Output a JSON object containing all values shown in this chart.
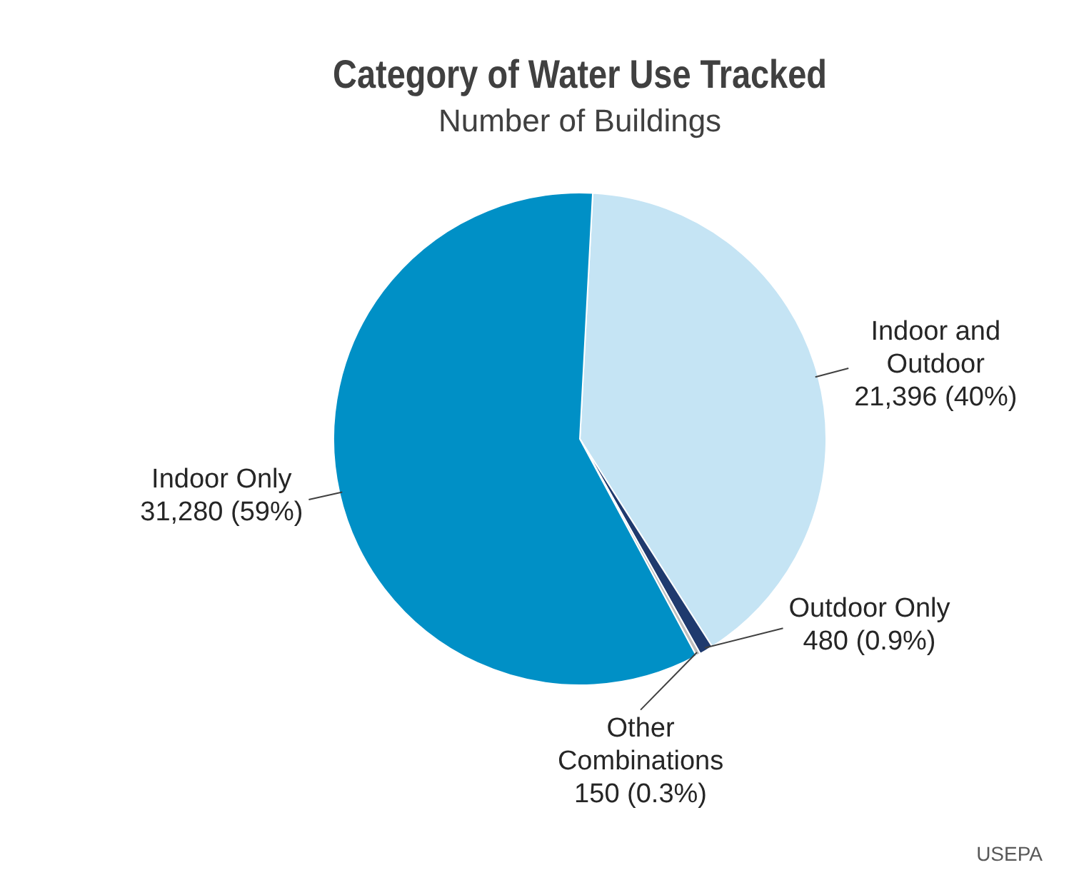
{
  "chart_data": {
    "type": "pie",
    "title": "Category of Water Use Tracked",
    "subtitle": "Number of Buildings",
    "categories": [
      "Indoor and Outdoor",
      "Outdoor Only",
      "Other Combinations",
      "Indoor Only"
    ],
    "values": [
      21396,
      480,
      150,
      31280
    ],
    "value_labels": [
      "21,396 (40%)",
      "480 (0.9%)",
      "150 (0.3%)",
      "31,280 (59%)"
    ],
    "colors": [
      "#c5e4f4",
      "#1f3a6e",
      "#bfbfbf",
      "#0090c6"
    ],
    "legend": false,
    "annotations": [
      "USEPA"
    ]
  }
}
